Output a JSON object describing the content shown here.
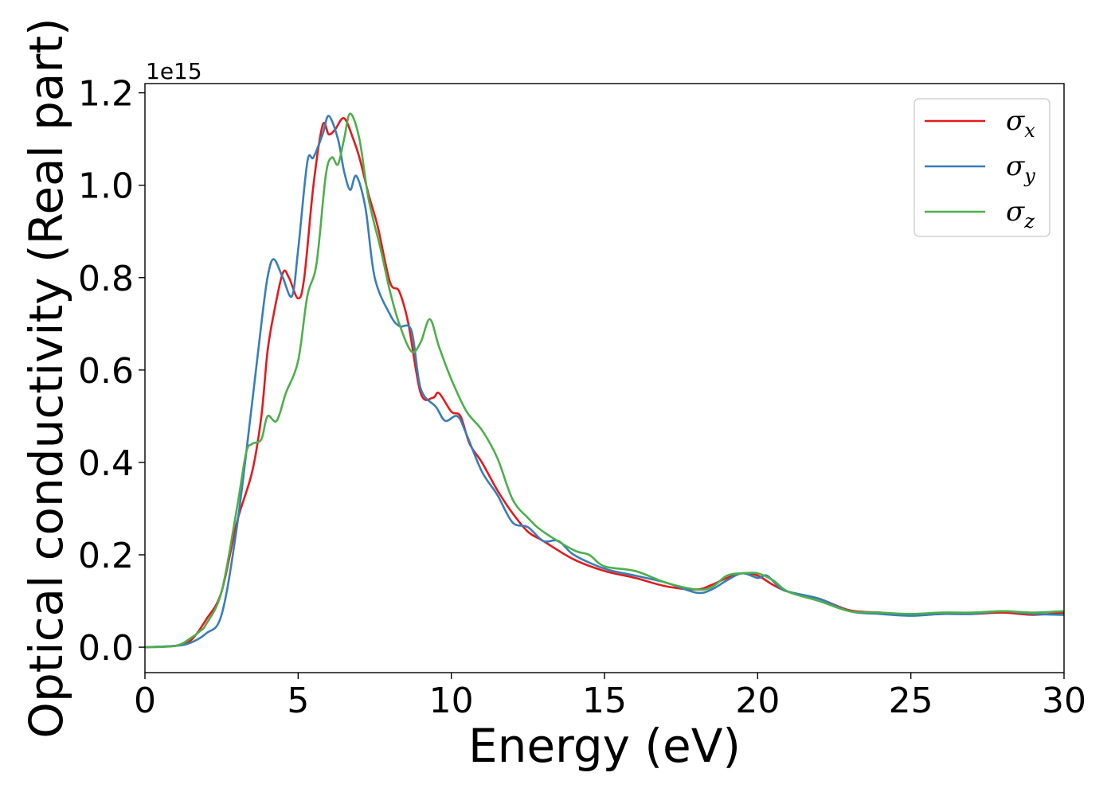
{
  "chart_data": {
    "type": "line",
    "xlabel": "Energy (eV)",
    "ylabel": "Optical conductivity (Real part)",
    "y_offset_label": "1e15",
    "xlim": [
      0,
      30
    ],
    "ylim": [
      -0.055,
      1.22
    ],
    "x_ticks": [
      0,
      5,
      10,
      15,
      20,
      25,
      30
    ],
    "x_tick_labels": [
      "0",
      "5",
      "10",
      "15",
      "20",
      "25",
      "30"
    ],
    "y_ticks": [
      0.0,
      0.2,
      0.4,
      0.6,
      0.8,
      1.0,
      1.2
    ],
    "y_tick_labels": [
      "0.0",
      "0.2",
      "0.4",
      "0.6",
      "0.8",
      "1.0",
      "1.2"
    ],
    "grid": false,
    "legend_position": "top-right",
    "series": [
      {
        "name": "σx",
        "symbol": "σ",
        "subscript": "x",
        "color": "#e41a1c",
        "points": [
          [
            0,
            0.0
          ],
          [
            1.0,
            0.003
          ],
          [
            1.5,
            0.015
          ],
          [
            2.0,
            0.06
          ],
          [
            2.5,
            0.12
          ],
          [
            3.0,
            0.27
          ],
          [
            3.5,
            0.38
          ],
          [
            3.8,
            0.5
          ],
          [
            4.0,
            0.64
          ],
          [
            4.2,
            0.72
          ],
          [
            4.5,
            0.81
          ],
          [
            4.7,
            0.8
          ],
          [
            5.0,
            0.755
          ],
          [
            5.2,
            0.8
          ],
          [
            5.5,
            1.0
          ],
          [
            5.8,
            1.13
          ],
          [
            6.0,
            1.11
          ],
          [
            6.2,
            1.12
          ],
          [
            6.5,
            1.145
          ],
          [
            6.8,
            1.1
          ],
          [
            7.0,
            1.06
          ],
          [
            7.3,
            0.98
          ],
          [
            7.6,
            0.91
          ],
          [
            8.0,
            0.79
          ],
          [
            8.3,
            0.77
          ],
          [
            8.6,
            0.7
          ],
          [
            9.0,
            0.55
          ],
          [
            9.4,
            0.54
          ],
          [
            9.6,
            0.55
          ],
          [
            10.0,
            0.51
          ],
          [
            10.3,
            0.5
          ],
          [
            10.6,
            0.44
          ],
          [
            11.0,
            0.4
          ],
          [
            11.5,
            0.34
          ],
          [
            12.0,
            0.29
          ],
          [
            12.5,
            0.25
          ],
          [
            13.0,
            0.23
          ],
          [
            14.0,
            0.19
          ],
          [
            15.0,
            0.165
          ],
          [
            16.0,
            0.15
          ],
          [
            17.0,
            0.132
          ],
          [
            18.0,
            0.125
          ],
          [
            18.5,
            0.135
          ],
          [
            19.0,
            0.15
          ],
          [
            19.5,
            0.16
          ],
          [
            20.0,
            0.155
          ],
          [
            20.5,
            0.135
          ],
          [
            21.0,
            0.12
          ],
          [
            22.0,
            0.105
          ],
          [
            23.0,
            0.08
          ],
          [
            24.0,
            0.075
          ],
          [
            25.0,
            0.07
          ],
          [
            26.0,
            0.072
          ],
          [
            27.0,
            0.072
          ],
          [
            28.0,
            0.075
          ],
          [
            29.0,
            0.07
          ],
          [
            30.0,
            0.075
          ]
        ]
      },
      {
        "name": "σy",
        "symbol": "σ",
        "subscript": "y",
        "color": "#377eb8",
        "points": [
          [
            0,
            0.0
          ],
          [
            1.0,
            0.003
          ],
          [
            1.5,
            0.01
          ],
          [
            2.0,
            0.03
          ],
          [
            2.5,
            0.07
          ],
          [
            3.0,
            0.26
          ],
          [
            3.5,
            0.53
          ],
          [
            3.8,
            0.7
          ],
          [
            4.0,
            0.8
          ],
          [
            4.2,
            0.84
          ],
          [
            4.5,
            0.8
          ],
          [
            4.8,
            0.76
          ],
          [
            5.0,
            0.86
          ],
          [
            5.3,
            1.05
          ],
          [
            5.5,
            1.06
          ],
          [
            5.8,
            1.11
          ],
          [
            6.0,
            1.15
          ],
          [
            6.3,
            1.1
          ],
          [
            6.5,
            1.03
          ],
          [
            6.7,
            0.99
          ],
          [
            6.9,
            1.02
          ],
          [
            7.2,
            0.95
          ],
          [
            7.5,
            0.8
          ],
          [
            8.0,
            0.72
          ],
          [
            8.3,
            0.695
          ],
          [
            8.7,
            0.685
          ],
          [
            9.0,
            0.56
          ],
          [
            9.5,
            0.52
          ],
          [
            9.8,
            0.49
          ],
          [
            10.2,
            0.5
          ],
          [
            10.5,
            0.46
          ],
          [
            11.0,
            0.38
          ],
          [
            11.5,
            0.33
          ],
          [
            12.0,
            0.27
          ],
          [
            12.5,
            0.26
          ],
          [
            13.0,
            0.23
          ],
          [
            13.5,
            0.23
          ],
          [
            14.0,
            0.2
          ],
          [
            15.0,
            0.17
          ],
          [
            16.0,
            0.155
          ],
          [
            17.0,
            0.14
          ],
          [
            18.0,
            0.118
          ],
          [
            18.5,
            0.125
          ],
          [
            19.0,
            0.145
          ],
          [
            19.5,
            0.16
          ],
          [
            20.0,
            0.15
          ],
          [
            20.3,
            0.155
          ],
          [
            20.7,
            0.13
          ],
          [
            21.0,
            0.12
          ],
          [
            22.0,
            0.105
          ],
          [
            23.0,
            0.078
          ],
          [
            24.0,
            0.072
          ],
          [
            25.0,
            0.068
          ],
          [
            26.0,
            0.072
          ],
          [
            27.0,
            0.072
          ],
          [
            28.0,
            0.078
          ],
          [
            29.0,
            0.072
          ],
          [
            30.0,
            0.07
          ]
        ]
      },
      {
        "name": "σz",
        "symbol": "σ",
        "subscript": "z",
        "color": "#4daf4a",
        "points": [
          [
            0,
            0.0
          ],
          [
            1.0,
            0.003
          ],
          [
            1.5,
            0.02
          ],
          [
            1.8,
            0.035
          ],
          [
            2.0,
            0.05
          ],
          [
            2.5,
            0.12
          ],
          [
            3.0,
            0.3
          ],
          [
            3.3,
            0.42
          ],
          [
            3.5,
            0.44
          ],
          [
            3.8,
            0.45
          ],
          [
            4.0,
            0.5
          ],
          [
            4.3,
            0.49
          ],
          [
            4.6,
            0.55
          ],
          [
            5.0,
            0.62
          ],
          [
            5.3,
            0.76
          ],
          [
            5.6,
            0.83
          ],
          [
            5.9,
            1.02
          ],
          [
            6.1,
            1.06
          ],
          [
            6.3,
            1.045
          ],
          [
            6.5,
            1.1
          ],
          [
            6.7,
            1.155
          ],
          [
            7.0,
            1.1
          ],
          [
            7.3,
            0.97
          ],
          [
            7.7,
            0.86
          ],
          [
            8.0,
            0.77
          ],
          [
            8.3,
            0.7
          ],
          [
            8.7,
            0.64
          ],
          [
            9.0,
            0.66
          ],
          [
            9.3,
            0.71
          ],
          [
            9.6,
            0.65
          ],
          [
            10.0,
            0.58
          ],
          [
            10.5,
            0.51
          ],
          [
            11.0,
            0.47
          ],
          [
            11.5,
            0.41
          ],
          [
            12.0,
            0.32
          ],
          [
            12.5,
            0.28
          ],
          [
            13.0,
            0.25
          ],
          [
            14.0,
            0.21
          ],
          [
            14.5,
            0.2
          ],
          [
            15.0,
            0.175
          ],
          [
            16.0,
            0.165
          ],
          [
            17.0,
            0.14
          ],
          [
            18.0,
            0.125
          ],
          [
            18.5,
            0.13
          ],
          [
            19.0,
            0.155
          ],
          [
            19.5,
            0.16
          ],
          [
            20.0,
            0.16
          ],
          [
            20.5,
            0.145
          ],
          [
            21.0,
            0.12
          ],
          [
            22.0,
            0.1
          ],
          [
            23.0,
            0.078
          ],
          [
            24.0,
            0.075
          ],
          [
            25.0,
            0.072
          ],
          [
            26.0,
            0.075
          ],
          [
            27.0,
            0.075
          ],
          [
            28.0,
            0.078
          ],
          [
            29.0,
            0.075
          ],
          [
            30.0,
            0.078
          ]
        ]
      }
    ]
  }
}
